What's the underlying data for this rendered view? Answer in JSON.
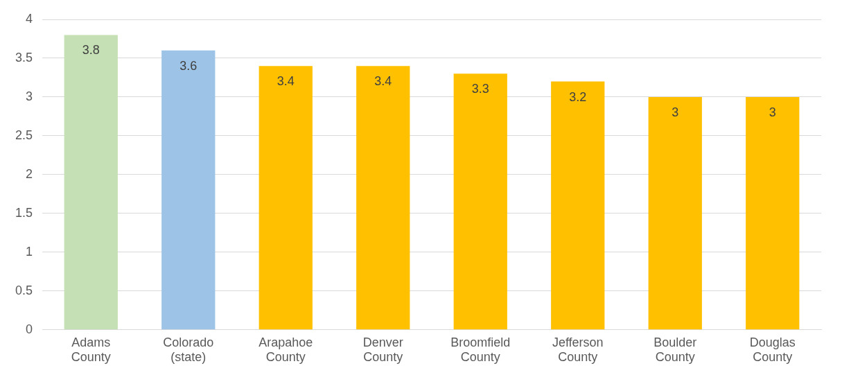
{
  "chart_data": {
    "type": "bar",
    "categories": [
      "Adams County",
      "Colorado (state)",
      "Arapahoe County",
      "Denver County",
      "Broomfield County",
      "Jefferson County",
      "Boulder County",
      "Douglas County"
    ],
    "values": [
      3.8,
      3.6,
      3.4,
      3.4,
      3.3,
      3.2,
      3,
      3
    ],
    "colors": [
      "#c5e0b4",
      "#9dc3e6",
      "#ffc000",
      "#ffc000",
      "#ffc000",
      "#ffc000",
      "#ffc000",
      "#ffc000"
    ],
    "ylim": [
      0,
      4
    ],
    "yticks": [
      0,
      0.5,
      1,
      1.5,
      2,
      2.5,
      3,
      3.5,
      4
    ],
    "grid": "y",
    "data_labels": true,
    "legend": false
  }
}
